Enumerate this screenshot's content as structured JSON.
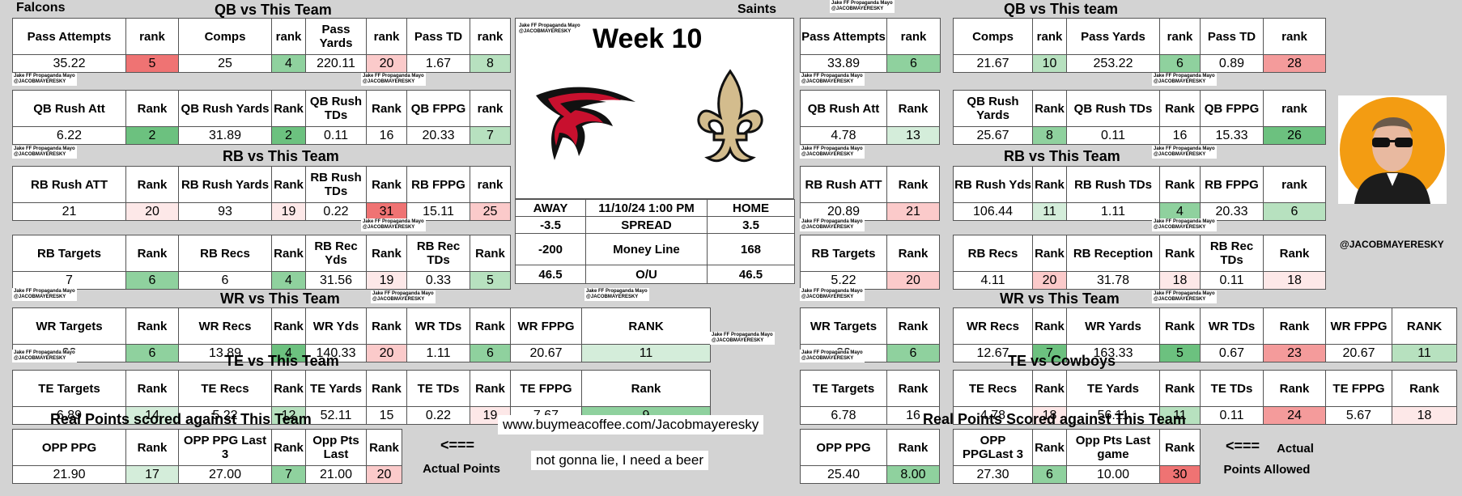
{
  "watermark_full": "Jake FF Propaganda Mayo",
  "watermark_handle": "@JACOBMAYERESKY",
  "left": {
    "team": "Falcons",
    "qb_title": "QB vs This Team",
    "qb1": {
      "h": [
        "Pass Attempts",
        "rank",
        "Comps",
        "rank",
        "Pass Yards",
        "rank",
        "Pass TD",
        "rank"
      ],
      "v": [
        "35.22",
        "5",
        "25",
        "4",
        "220.11",
        "20",
        "1.67",
        "8"
      ]
    },
    "qb2": {
      "h": [
        "QB Rush Att",
        "Rank",
        "QB Rush Yards",
        "Rank",
        "QB Rush TDs",
        "Rank",
        "QB FPPG",
        "rank"
      ],
      "v": [
        "6.22",
        "2",
        "31.89",
        "2",
        "0.11",
        "16",
        "20.33",
        "7"
      ]
    },
    "rb_title": "RB vs This Team",
    "rb1": {
      "h": [
        "RB Rush ATT",
        "Rank",
        "RB Rush Yards",
        "Rank",
        "RB Rush TDs",
        "Rank",
        "RB FPPG",
        "rank"
      ],
      "v": [
        "21",
        "20",
        "93",
        "19",
        "0.22",
        "31",
        "15.11",
        "25"
      ]
    },
    "rb2": {
      "h": [
        "RB Targets",
        "Rank",
        "RB Recs",
        "Rank",
        "RB Rec Yds",
        "Rank",
        "RB Rec TDs",
        "Rank"
      ],
      "v": [
        "7",
        "6",
        "6",
        "4",
        "31.56",
        "19",
        "0.33",
        "5"
      ]
    },
    "wr_title": "WR vs This Team",
    "wr": {
      "h": [
        "WR Targets",
        "Rank",
        "WR Recs",
        "Rank",
        "WR Yds",
        "Rank",
        "WR TDs",
        "Rank",
        "WR FPPG",
        "RANK"
      ],
      "v": [
        "20",
        "6",
        "13.89",
        "4",
        "140.33",
        "20",
        "1.11",
        "6",
        "20.67",
        "11"
      ]
    },
    "te_title": "TE vs This Team",
    "te": {
      "h": [
        "TE Targets",
        "Rank",
        "TE Recs",
        "Rank",
        "TE Yards",
        "Rank",
        "TE TDs",
        "Rank",
        "TE FPPG",
        "Rank"
      ],
      "v": [
        "6.89",
        "14",
        "5.22",
        "12",
        "52.11",
        "15",
        "0.22",
        "19",
        "7.67",
        "9"
      ]
    },
    "pts_title": "Real Points scored against This Team",
    "pts": {
      "h": [
        "OPP PPG",
        "Rank",
        "OPP PPG Last 3",
        "Rank",
        "Opp Pts Last",
        "Rank"
      ],
      "v": [
        "21.90",
        "17",
        "27.00",
        "7",
        "21.00",
        "20"
      ]
    },
    "arrow": "<===",
    "arrow_label": "Actual Points"
  },
  "center": {
    "week": "Week 10",
    "away_label": "AWAY",
    "datetime": "11/10/24 1:00 PM",
    "home_label": "HOME",
    "spread_away": "-3.5",
    "spread_label": "SPREAD",
    "spread_home": "3.5",
    "ml_away": "-200",
    "ml_label": "Money Line",
    "ml_home": "168",
    "ou_away": "46.5",
    "ou_label": "O/U",
    "ou_home": "46.5",
    "coffee": "www.buymeacoffee.com/Jacobmayeresky",
    "beer": "not gonna lie, I need a beer"
  },
  "right": {
    "team": "Saints",
    "qb_title": "QB vs This team",
    "qb1": {
      "h": [
        "Pass Attempts",
        "rank",
        "Comps",
        "rank",
        "Pass Yards",
        "rank",
        "Pass TD",
        "rank"
      ],
      "v": [
        "33.89",
        "6",
        "21.67",
        "10",
        "253.22",
        "6",
        "0.89",
        "28"
      ]
    },
    "qb2": {
      "h": [
        "QB Rush Att",
        "Rank",
        "QB Rush Yards",
        "Rank",
        "QB Rush TDs",
        "Rank",
        "QB FPPG",
        "rank"
      ],
      "v": [
        "4.78",
        "13",
        "25.67",
        "8",
        "0.11",
        "16",
        "15.33",
        "26"
      ]
    },
    "rb_title": "RB vs This Team",
    "rb1": {
      "h": [
        "RB Rush ATT",
        "Rank",
        "RB Rush Yds",
        "Rank",
        "RB Rush TDs",
        "Rank",
        "RB FPPG",
        "rank"
      ],
      "v": [
        "20.89",
        "21",
        "106.44",
        "11",
        "1.11",
        "4",
        "20.33",
        "6"
      ]
    },
    "rb2": {
      "h": [
        "RB Targets",
        "Rank",
        "RB Recs",
        "Rank",
        "RB Reception",
        "Rank",
        "RB Rec TDs",
        "Rank"
      ],
      "v": [
        "5.22",
        "20",
        "4.11",
        "20",
        "31.78",
        "18",
        "0.11",
        "18"
      ]
    },
    "wr_title": "WR vs This Team",
    "wr": {
      "h": [
        "WR Targets",
        "Rank",
        "WR Recs",
        "Rank",
        "WR Yards",
        "Rank",
        "WR TDs",
        "Rank",
        "WR FPPG",
        "RANK"
      ],
      "v": [
        "20",
        "6",
        "12.67",
        "7",
        "163.33",
        "5",
        "0.67",
        "23",
        "20.67",
        "11"
      ]
    },
    "te_title": "TE vs Cowboys",
    "te": {
      "h": [
        "TE Targets",
        "Rank",
        "TE Recs",
        "Rank",
        "TE Yards",
        "Rank",
        "TE TDs",
        "Rank",
        "TE FPPG",
        "Rank"
      ],
      "v": [
        "6.78",
        "16",
        "4.78",
        "18",
        "56.11",
        "11",
        "0.11",
        "24",
        "5.67",
        "18"
      ]
    },
    "pts_title": "Real Points Scored against This Team",
    "pts": {
      "h": [
        "OPP PPG",
        "Rank",
        "OPP PPGLast 3",
        "Rank",
        "Opp Pts Last game",
        "Rank"
      ],
      "v": [
        "25.40",
        "8.00",
        "27.30",
        "6",
        "10.00",
        "30"
      ]
    },
    "arrow": "<===",
    "arrow_label_1": "Actual",
    "arrow_label_2": "Points Allowed"
  },
  "handle": "@JACOBMAYERESKY",
  "colors": {
    "green_light": "#d4edda",
    "green_dark": "#6cc17f",
    "red_light": "#fde8e8",
    "red_dark": "#ef7373"
  },
  "icons": [
    "falcons-logo",
    "saints-fleur-de-lis-logo",
    "avatar-photo"
  ]
}
